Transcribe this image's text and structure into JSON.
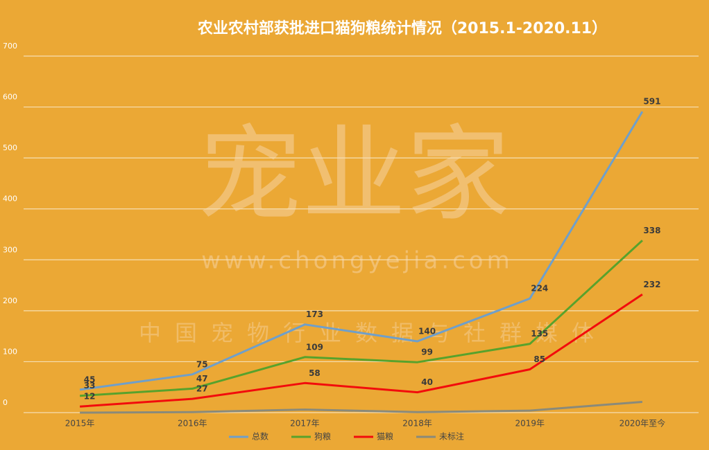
{
  "chart_data": {
    "type": "line",
    "title": "农业农村部获批进口猫狗粮统计情况（2015.1-2020.11）",
    "watermark": [
      "宠业家",
      "www.chongyejia.com",
      "中国宠物行业数据与社群媒体"
    ],
    "categories": [
      "2015年",
      "2016年",
      "2017年",
      "2018年",
      "2019年",
      "2020年至今"
    ],
    "series": [
      {
        "name": "总数",
        "color": "#6f9fca",
        "values": [
          45,
          75,
          173,
          140,
          224,
          591
        ],
        "labels": true
      },
      {
        "name": "狗粮",
        "color": "#58a22c",
        "values": [
          33,
          47,
          109,
          99,
          135,
          338
        ],
        "labels": true
      },
      {
        "name": "猫粮",
        "color": "#f20c0c",
        "values": [
          12,
          27,
          58,
          40,
          85,
          232
        ],
        "labels": true
      },
      {
        "name": "未标注",
        "color": "#8a8a7a",
        "values": [
          0,
          1,
          6,
          1,
          4,
          21
        ],
        "labels": false
      }
    ],
    "ylim": [
      0,
      700
    ],
    "yticks": [
      0,
      100,
      200,
      300,
      400,
      500,
      600,
      700
    ],
    "grid": true,
    "legend": "bottom"
  }
}
